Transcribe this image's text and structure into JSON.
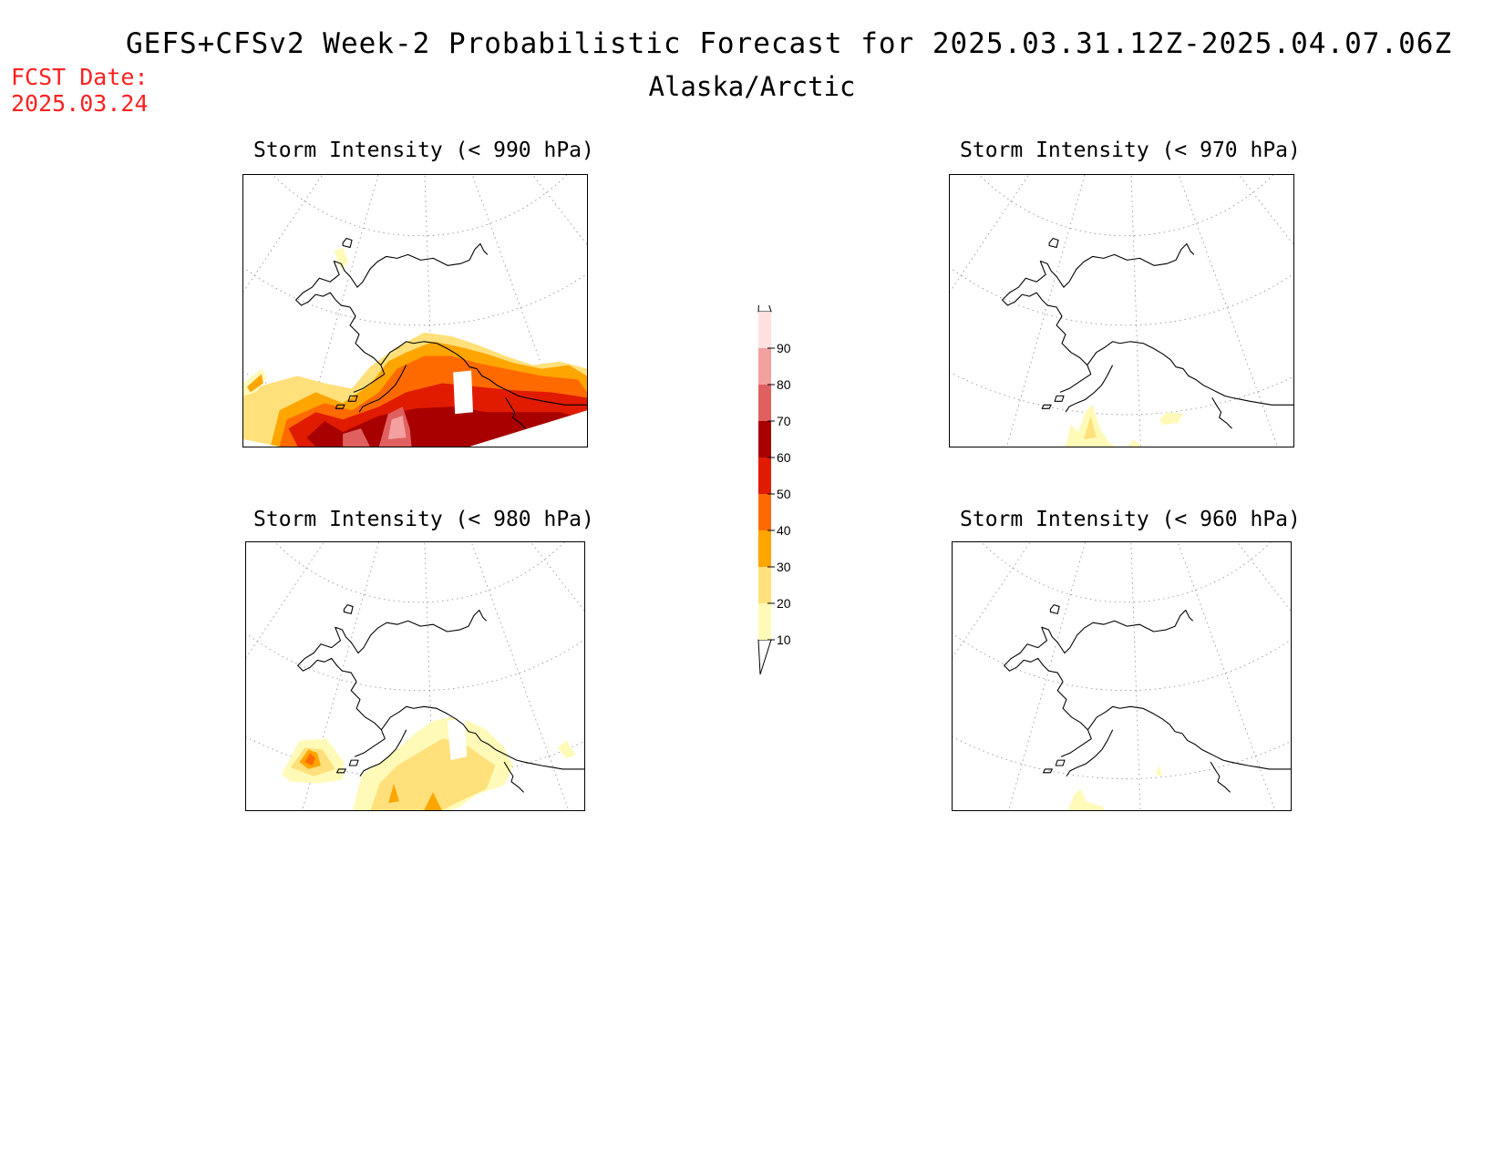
{
  "header": {
    "title": "GEFS+CFSv2 Week-2 Probabilistic Forecast for 2025.03.31.12Z-2025.04.07.06Z",
    "subtitle": "Alaska/Arctic",
    "fcst_label": "FCST Date:",
    "fcst_date": "2025.03.24"
  },
  "panels": [
    {
      "title": "Storm Intensity (< 990 hPa)",
      "intensity": "high"
    },
    {
      "title": "Storm Intensity (< 970 hPa)",
      "intensity": "low"
    },
    {
      "title": "Storm Intensity (< 980 hPa)",
      "intensity": "medium"
    },
    {
      "title": "Storm Intensity (< 960 hPa)",
      "intensity": "minimal"
    }
  ],
  "colorbar": {
    "levels": [
      "10",
      "20",
      "30",
      "40",
      "50",
      "60",
      "70",
      "80",
      "90"
    ],
    "colors": [
      "#fffab8",
      "#ffe07a",
      "#ffa500",
      "#ff6a00",
      "#e01b00",
      "#a80000",
      "#e06060",
      "#f4a0a0",
      "#ffe0e0"
    ]
  }
}
